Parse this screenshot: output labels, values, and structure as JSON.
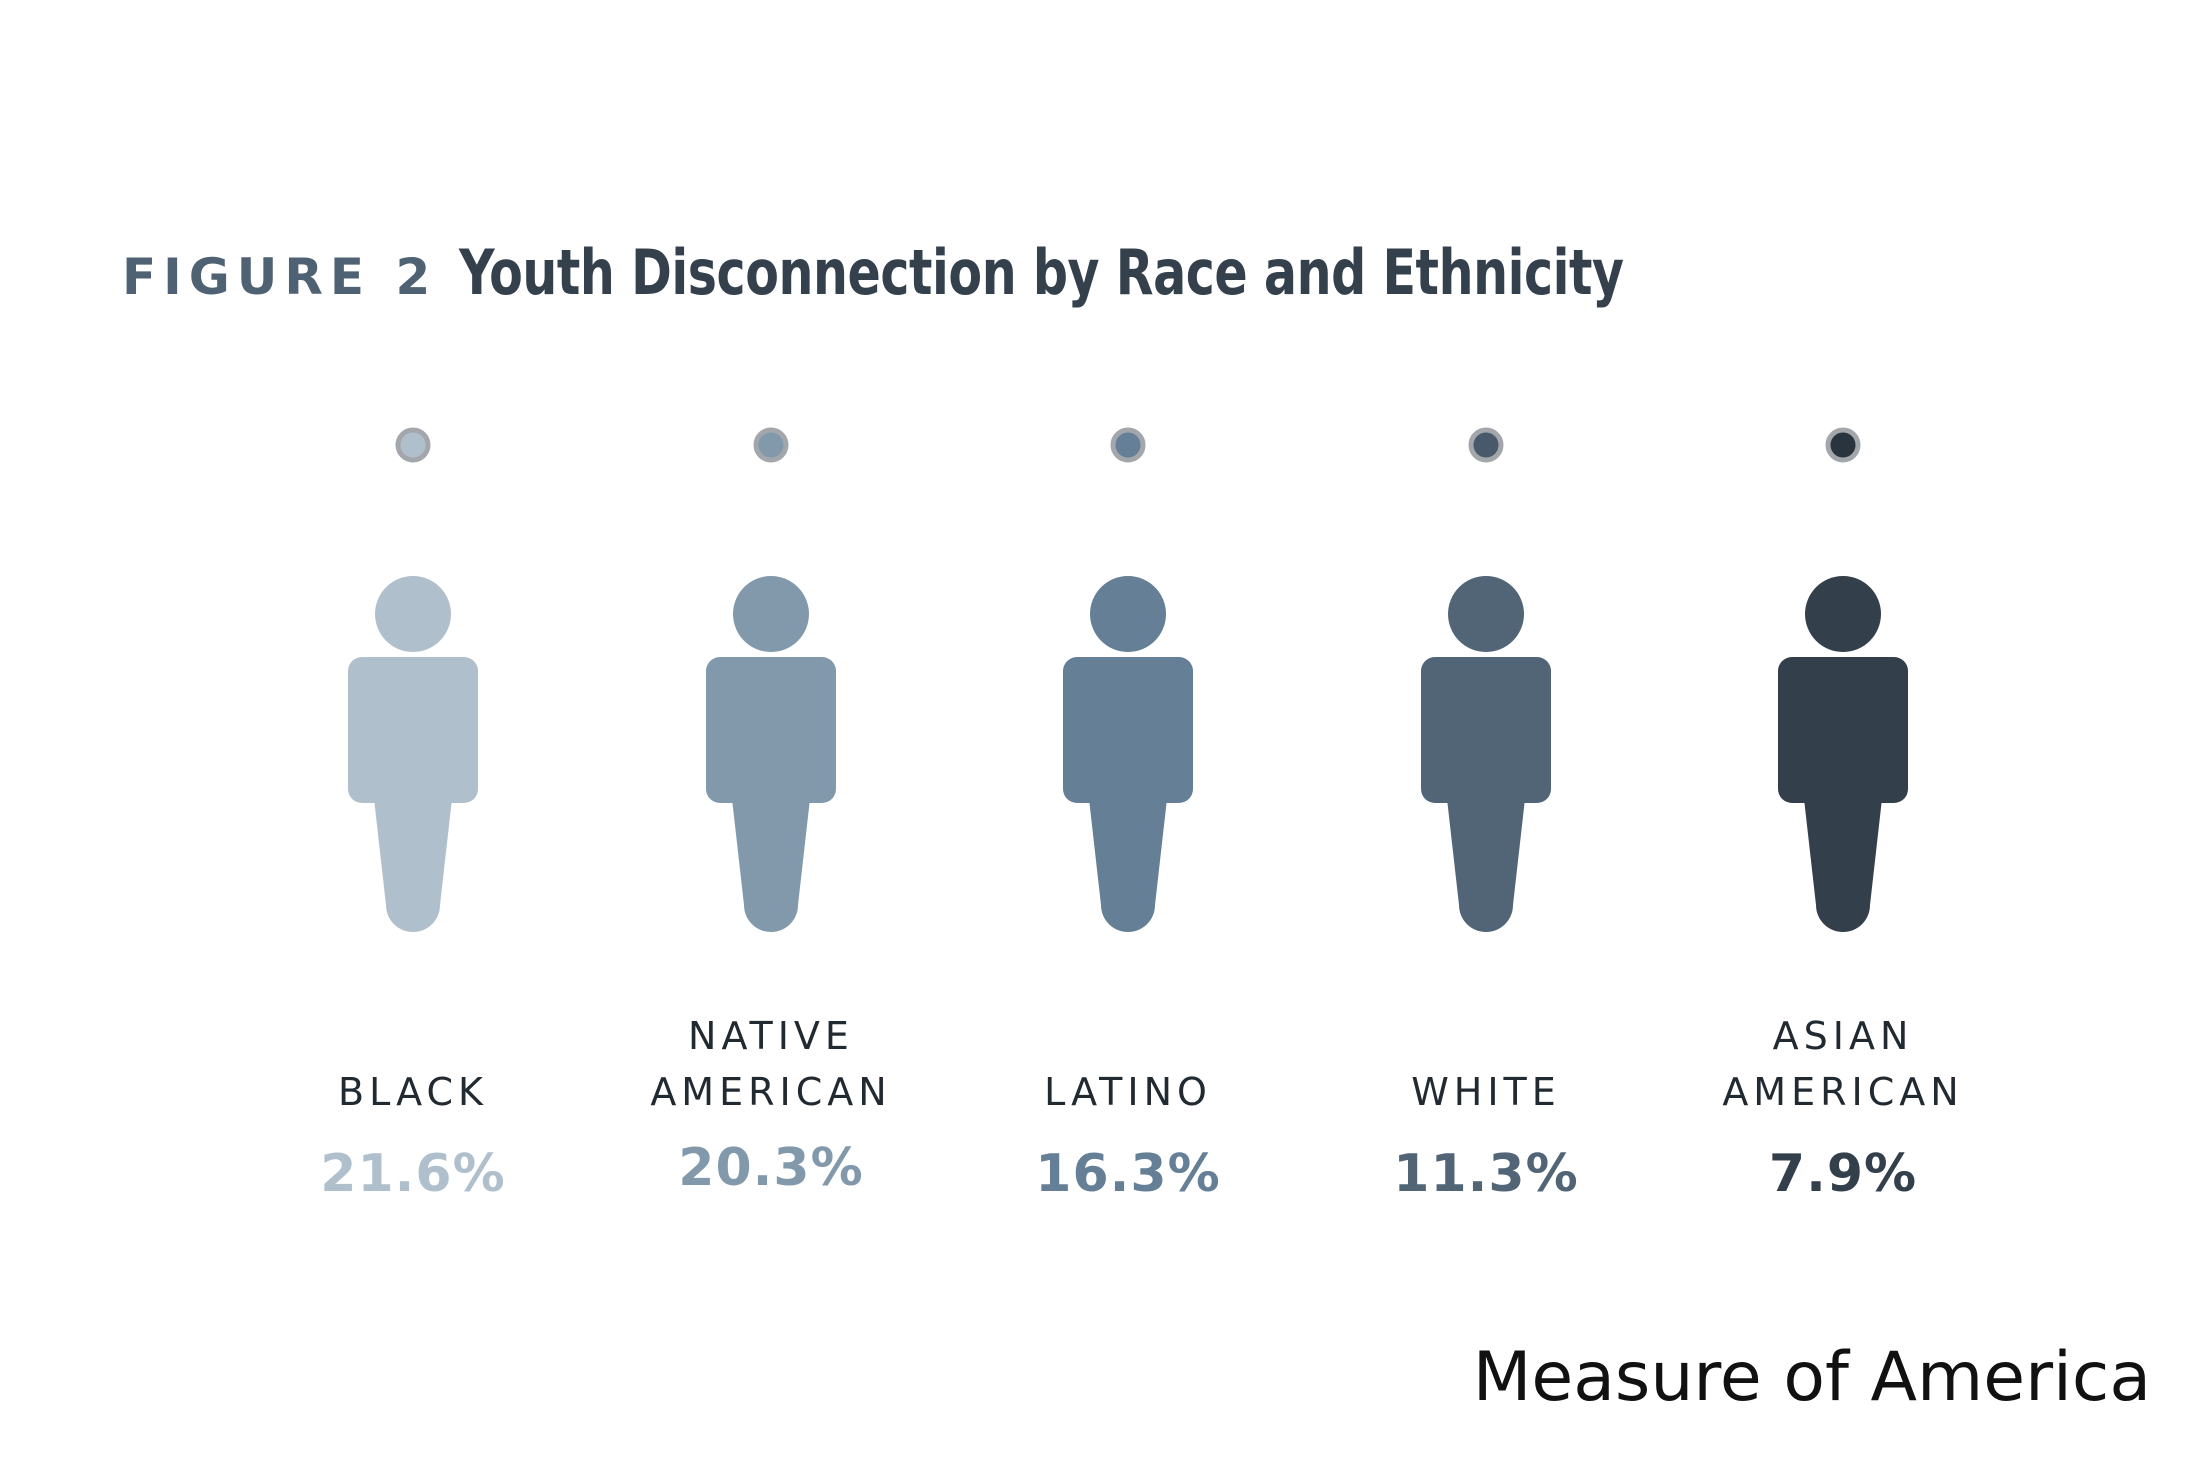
{
  "figure_label": "FIGURE 2",
  "source_credit": "Measure of America",
  "chart_data": {
    "type": "bar",
    "title": "Youth Disconnection by Race and Ethnicity",
    "categories": [
      {
        "lines": [
          "BLACK"
        ],
        "value": 21.6,
        "value_label": "21.6%",
        "color": "#b0bfcc",
        "dot_color": "#b0bfcc"
      },
      {
        "lines": [
          "NATIVE",
          "AMERICAN"
        ],
        "value": 20.3,
        "value_label": "20.3%",
        "color": "#8299ac",
        "dot_color": "#8299ac"
      },
      {
        "lines": [
          "LATINO"
        ],
        "value": 16.3,
        "value_label": "16.3%",
        "color": "#657f96",
        "dot_color": "#657f96"
      },
      {
        "lines": [
          "WHITE"
        ],
        "value": 11.3,
        "value_label": "11.3%",
        "color": "#526577",
        "dot_color": "#47596b"
      },
      {
        "lines": [
          "ASIAN",
          "AMERICAN"
        ],
        "value": 7.9,
        "value_label": "7.9%",
        "color": "#333f4a",
        "dot_color": "#2a343e"
      }
    ],
    "line_gradient": [
      "#c6d2dc",
      "#2a3440"
    ],
    "dot_ring_color": "#a3a7ab"
  }
}
